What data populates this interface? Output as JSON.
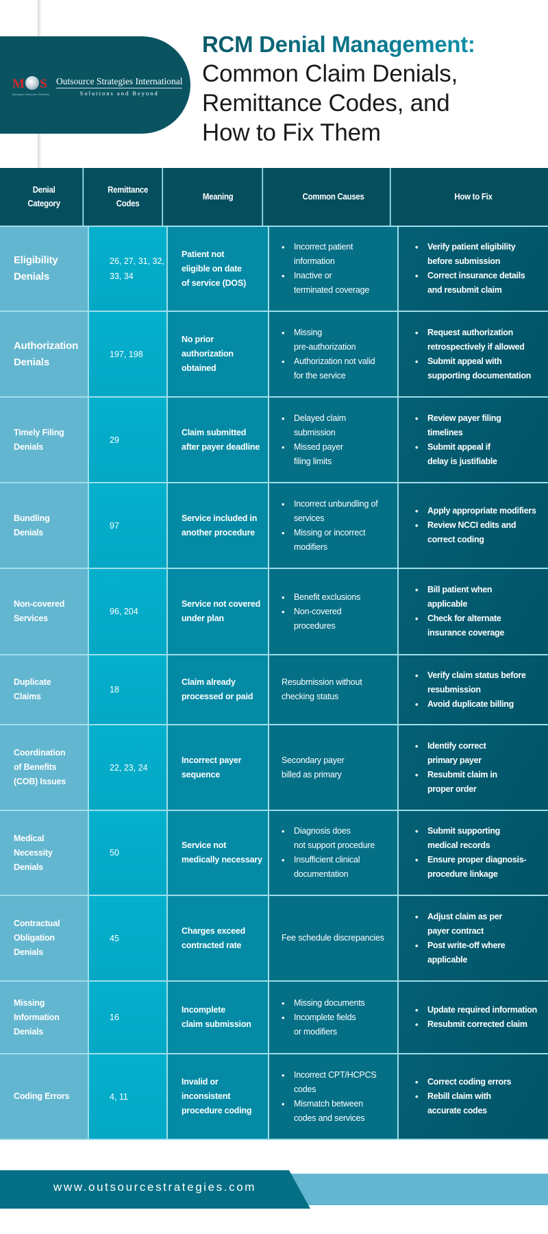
{
  "logo": {
    "mark_letters": [
      "M",
      "S"
    ],
    "mark_tagline": "Managed Outsource Solutions",
    "company_name": "Outsource Strategies International",
    "slogan": "Solutions and Beyond",
    "icon": "globe-icon"
  },
  "title": {
    "bold": "RCM Denial Management:",
    "lines": [
      "Common Claim Denials,",
      "Remittance Codes, and",
      "How to Fix Them"
    ]
  },
  "colors": {
    "header": "#054e5e",
    "col_category": "#63b6cf",
    "col_codes": "#04aecb",
    "col_meaning": "#048aa5",
    "col_causes": "#056f86",
    "col_fix": "#025b70",
    "gridline": "#9fdfeb"
  },
  "table": {
    "headers": [
      "Denial\nCategory",
      "Remittance\nCodes",
      "Meaning",
      "Common Causes",
      "How to Fix"
    ],
    "rows": [
      {
        "category": "Eligibility\nDenials",
        "codes": "26, 27, 31, 32,\n33, 34",
        "meaning": "Patient not\neligible on date\nof service (DOS)",
        "causes": [
          "Incorrect patient\ninformation",
          "Inactive or\nterminated coverage"
        ],
        "fix": [
          "Verify patient eligibility\nbefore submission",
          "Correct insurance details\nand resubmit claim"
        ]
      },
      {
        "category": "Authorization\nDenials",
        "codes": "197, 198",
        "meaning": "No prior\nauthorization\nobtained",
        "causes": [
          "Missing\npre-authorization",
          "Authorization not valid\nfor the service"
        ],
        "fix": [
          "Request authorization\nretrospectively if allowed",
          "Submit appeal with\nsupporting documentation"
        ]
      },
      {
        "category": "Timely Filing\nDenials",
        "codes": "29",
        "meaning": "Claim submitted\nafter payer deadline",
        "causes": [
          "Delayed claim\nsubmission",
          "Missed payer\nfiling limits"
        ],
        "fix": [
          "Review payer filing\ntimelines",
          "Submit appeal if\ndelay is justifiable"
        ]
      },
      {
        "category": "Bundling\nDenials",
        "codes": "97",
        "meaning": "Service included in\nanother procedure",
        "causes": [
          "Incorrect unbundling of\nservices",
          "Missing or incorrect\nmodifiers"
        ],
        "fix": [
          "Apply appropriate modifiers",
          "Review NCCI edits and\ncorrect coding"
        ]
      },
      {
        "category": "Non-covered\nServices",
        "codes": "96, 204",
        "meaning": "Service not covered\nunder plan",
        "causes": [
          "Benefit exclusions",
          "Non-covered\nprocedures"
        ],
        "fix": [
          "Bill patient when\napplicable",
          "Check for alternate\ninsurance coverage"
        ]
      },
      {
        "category": "Duplicate\nClaims",
        "codes": "18",
        "meaning": "Claim already\nprocessed or paid",
        "causes_text": "Resubmission without\nchecking status",
        "fix": [
          "Verify claim status before\nresubmission",
          "Avoid duplicate billing"
        ]
      },
      {
        "category": "Coordination\nof Benefits\n(COB) Issues",
        "codes": "22, 23, 24",
        "meaning": "Incorrect payer\nsequence",
        "causes_text": "Secondary payer\nbilled as primary",
        "fix": [
          "Identify correct\nprimary payer",
          "Resubmit claim in\nproper order"
        ]
      },
      {
        "category": "Medical\nNecessity\nDenials",
        "codes": "50",
        "meaning": "Service not\nmedically necessary",
        "causes": [
          "Diagnosis does\nnot support procedure",
          "Insufficient clinical\ndocumentation"
        ],
        "fix": [
          "Submit supporting\nmedical records",
          "Ensure proper diagnosis-\nprocedure linkage"
        ]
      },
      {
        "category": "Contractual\nObligation\nDenials",
        "codes": "45",
        "meaning": "Charges exceed\ncontracted rate",
        "causes_text": "Fee schedule discrepancies",
        "fix": [
          "Adjust claim as per\npayer contract",
          "Post write-off where\napplicable"
        ]
      },
      {
        "category": "Missing\nInformation\nDenials",
        "codes": "16",
        "meaning": "Incomplete\nclaim submission",
        "causes": [
          "Missing documents",
          "Incomplete fields\nor modifiers"
        ],
        "fix": [
          "Update required information",
          "Resubmit corrected claim"
        ]
      },
      {
        "category": "Coding Errors",
        "codes": "4, 11",
        "meaning": "Invalid or\ninconsistent\nprocedure coding",
        "causes": [
          "Incorrect CPT/HCPCS\ncodes",
          "Mismatch between\ncodes and services"
        ],
        "fix": [
          "Correct coding errors",
          "Rebill claim with\naccurate codes"
        ]
      }
    ]
  },
  "footer": {
    "url": "www.outsourcestrategies.com"
  }
}
